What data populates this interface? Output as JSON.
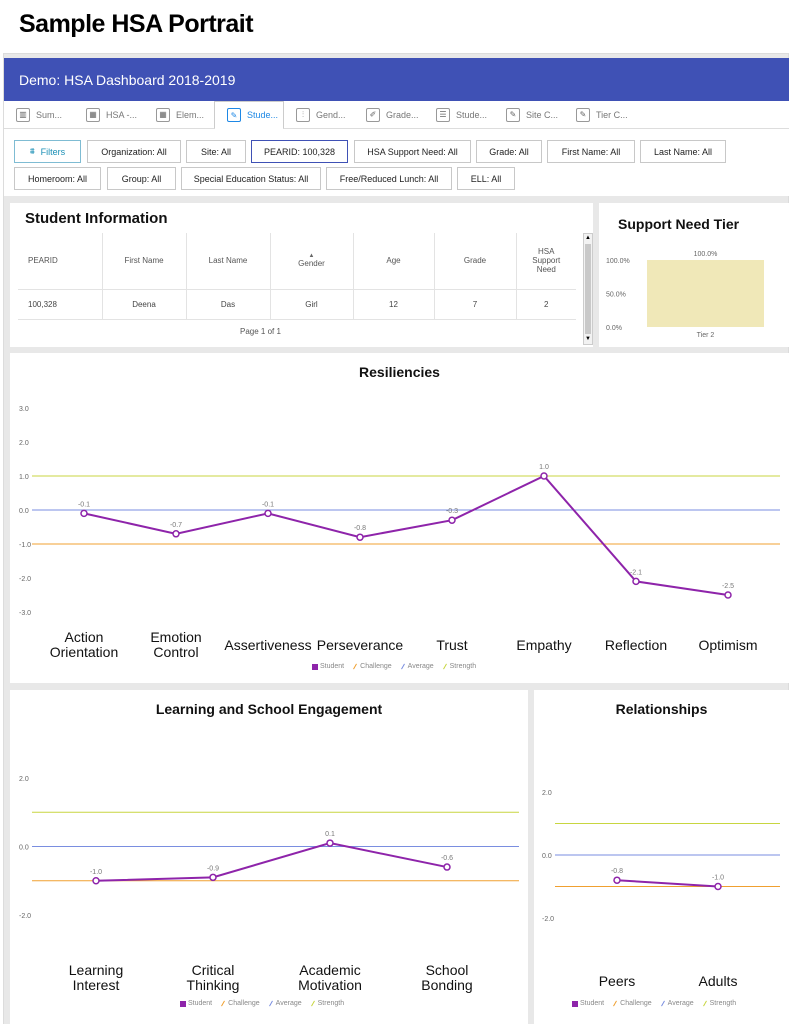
{
  "page_title": "Sample HSA Portrait",
  "header": {
    "title": "Demo: HSA Dashboard 2018-2019",
    "color": "#3f51b5"
  },
  "tabs": [
    {
      "label": "Sum...",
      "icon": "bar-chart-icon"
    },
    {
      "label": "HSA -...",
      "icon": "grid-icon"
    },
    {
      "label": "Elem...",
      "icon": "grid-icon"
    },
    {
      "label": "Stude...",
      "icon": "brush-icon",
      "active": true
    },
    {
      "label": "Gend...",
      "icon": "sliders-icon"
    },
    {
      "label": "Grade...",
      "icon": "pencil-icon"
    },
    {
      "label": "Stude...",
      "icon": "list-icon"
    },
    {
      "label": "Site C...",
      "icon": "brush-icon"
    },
    {
      "label": "Tier C...",
      "icon": "brush-icon"
    }
  ],
  "filters": {
    "button": "Filters",
    "row1": [
      "Organization:  All",
      "Site:  All",
      "PEARID:  100,328",
      "HSA Support Need:  All",
      "Grade:  All",
      "First Name:  All",
      "Last Name:  All"
    ],
    "row2": [
      "Homeroom:  All",
      "Group:  All",
      "Special Education Status:  All",
      "Free/Reduced Lunch:  All",
      "ELL:  All"
    ]
  },
  "student_info": {
    "title": "Student Information",
    "columns": [
      "PEARID",
      "First Name",
      "Last Name",
      "Gender",
      "Age",
      "Grade",
      "HSA Support Need"
    ],
    "rows": [
      [
        "100,328",
        "Deena",
        "Das",
        "Girl",
        "12",
        "7",
        "2"
      ]
    ],
    "pager": "Page 1 of 1"
  },
  "support_tier": {
    "title": "Support Need Tier",
    "chart_data": {
      "type": "bar",
      "categories": [
        "Tier 2"
      ],
      "values": [
        100.0
      ],
      "value_labels": [
        "100.0%"
      ],
      "ylim": [
        0,
        100
      ],
      "yticks": [
        "100.0%",
        "50.0%",
        "0.0%"
      ],
      "bar_color": "#f0e8b8"
    }
  },
  "legend": {
    "student": "Student",
    "challenge": "Challenge",
    "average": "Average",
    "strength": "Strength"
  },
  "colors": {
    "student": "#8e24aa",
    "challenge": "#f0a030",
    "average": "#7a8ee0",
    "strength": "#c8d640"
  },
  "resiliencies": {
    "title": "Resiliencies",
    "chart_data": {
      "type": "line",
      "categories": [
        "Action Orientation",
        "Emotion Control",
        "Assertiveness",
        "Perseverance",
        "Trust",
        "Empathy",
        "Reflection",
        "Optimism"
      ],
      "values": [
        -0.1,
        -0.7,
        -0.1,
        -0.8,
        -0.3,
        1.0,
        -2.1,
        -2.5
      ],
      "value_labels": [
        "-0.1",
        "-0.7",
        "-0.1",
        "-0.8",
        "-0.3",
        "1.0",
        "-2.1",
        "-2.5"
      ],
      "ylim": [
        -3,
        3
      ],
      "yticks": [
        "3.0",
        "2.0",
        "1.0",
        "0.0",
        "-1.0",
        "-2.0",
        "-3.0"
      ],
      "reference_lines": {
        "strength": 1.0,
        "average": 0.0,
        "challenge": -1.0
      }
    }
  },
  "learning": {
    "title": "Learning and School Engagement",
    "chart_data": {
      "type": "line",
      "categories": [
        "Learning Interest",
        "Critical Thinking",
        "Academic Motivation",
        "School Bonding"
      ],
      "values": [
        -1.0,
        -0.9,
        0.1,
        -0.6
      ],
      "value_labels": [
        "-1.0",
        "-0.9",
        "0.1",
        "-0.6"
      ],
      "ylim": [
        -2,
        2
      ],
      "yticks": [
        "2.0",
        "0.0",
        "-2.0"
      ],
      "reference_lines": {
        "strength": 1.0,
        "average": 0.0,
        "challenge": -1.0
      }
    }
  },
  "relationships": {
    "title": "Relationships",
    "chart_data": {
      "type": "line",
      "categories": [
        "Peers",
        "Adults"
      ],
      "values": [
        -0.8,
        -1.0
      ],
      "value_labels": [
        "-0.8",
        "-1.0"
      ],
      "ylim": [
        -2,
        2
      ],
      "yticks": [
        "2.0",
        "0.0",
        "-2.0"
      ],
      "reference_lines": {
        "strength": 1.0,
        "average": 0.0,
        "challenge": -1.0
      }
    }
  }
}
